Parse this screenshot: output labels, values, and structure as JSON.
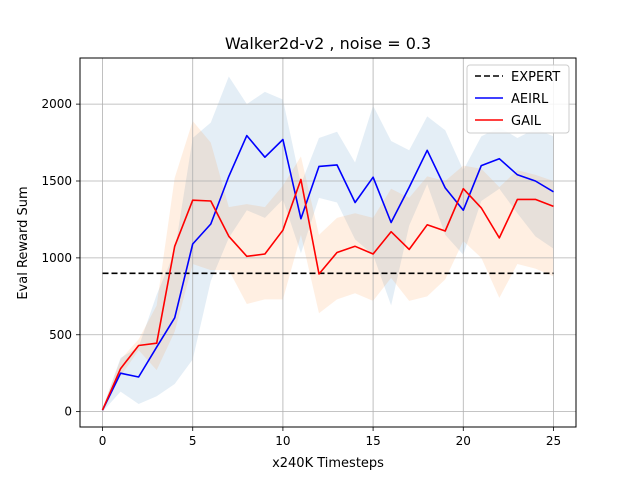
{
  "chart_data": {
    "type": "line",
    "title": "Walker2d-v2 , noise = 0.3",
    "xlabel": "x240K Timesteps",
    "ylabel": "Eval Reward Sum",
    "xlim": [
      -1.25,
      26.25
    ],
    "ylim": [
      -100,
      2300
    ],
    "xticks": [
      0,
      5,
      10,
      15,
      20,
      25
    ],
    "yticks": [
      0,
      500,
      1000,
      1500,
      2000
    ],
    "grid": true,
    "legend": "top-right",
    "x": [
      0,
      1,
      2,
      3,
      4,
      5,
      6,
      7,
      8,
      9,
      10,
      11,
      12,
      13,
      14,
      15,
      16,
      17,
      18,
      19,
      20,
      21,
      22,
      23,
      24,
      25
    ],
    "series": [
      {
        "name": "EXPERT",
        "color": "#000000",
        "dashed": true,
        "values": [
          900,
          900,
          900,
          900,
          900,
          900,
          900,
          900,
          900,
          900,
          900,
          900,
          900,
          900,
          900,
          900,
          900,
          900,
          900,
          900,
          900,
          900,
          900,
          900,
          900,
          900
        ]
      },
      {
        "name": "AEIRL",
        "color": "#0000ff",
        "band_color": "#1f77b4",
        "values": [
          10,
          250,
          225,
          420,
          610,
          1090,
          1220,
          1530,
          1795,
          1655,
          1770,
          1255,
          1595,
          1605,
          1360,
          1525,
          1230,
          1460,
          1700,
          1455,
          1310,
          1600,
          1645,
          1540,
          1500,
          1430
        ],
        "band_low": [
          0,
          130,
          50,
          100,
          180,
          340,
          850,
          1130,
          1310,
          1260,
          1380,
          1030,
          1390,
          1360,
          1120,
          1020,
          690,
          1210,
          1480,
          1150,
          1020,
          1370,
          1450,
          1290,
          1140,
          1060
        ],
        "band_high": [
          20,
          350,
          420,
          760,
          1040,
          1780,
          1880,
          2180,
          2000,
          2080,
          2030,
          1480,
          1780,
          1820,
          1620,
          1990,
          1760,
          1700,
          1920,
          1830,
          1570,
          1790,
          1850,
          1780,
          1840,
          1790
        ]
      },
      {
        "name": "GAIL",
        "color": "#ff0000",
        "band_color": "#ff7f0e",
        "values": [
          10,
          280,
          430,
          445,
          1075,
          1375,
          1370,
          1140,
          1010,
          1025,
          1180,
          1510,
          895,
          1035,
          1075,
          1025,
          1170,
          1055,
          1215,
          1175,
          1450,
          1325,
          1130,
          1380,
          1380,
          1335
        ],
        "band_low": [
          0,
          230,
          400,
          270,
          520,
          960,
          920,
          920,
          700,
          730,
          730,
          1150,
          640,
          730,
          770,
          720,
          870,
          720,
          750,
          860,
          1110,
          1000,
          740,
          960,
          930,
          880
        ],
        "band_high": [
          20,
          340,
          470,
          690,
          1520,
          1890,
          1750,
          1330,
          1350,
          1330,
          1470,
          1660,
          1150,
          1260,
          1290,
          1260,
          1450,
          1390,
          1530,
          1500,
          1600,
          1580,
          1460,
          1570,
          1540,
          1500
        ]
      }
    ]
  }
}
